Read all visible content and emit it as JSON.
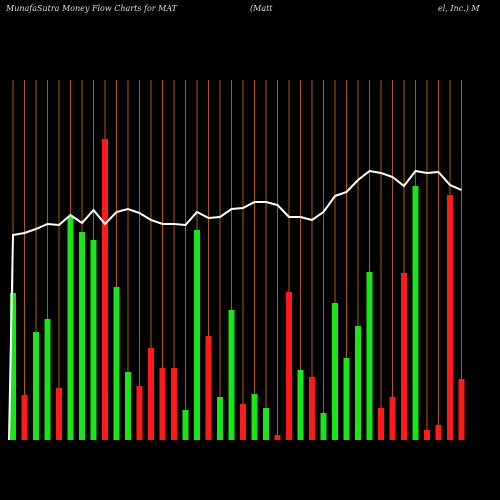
{
  "chart_data": {
    "type": "bar",
    "title": "MunafaSutra  Money Flow  Charts for MAT",
    "subtitle_left": "(Matt",
    "subtitle_right": "el, Inc.) M",
    "values": [
      147,
      45,
      108,
      121,
      52,
      224,
      208,
      200,
      301,
      153,
      68,
      54,
      92,
      72,
      72,
      30,
      210,
      104,
      43,
      130,
      36,
      46,
      32,
      5,
      148,
      70,
      63,
      27,
      137,
      82,
      114,
      168,
      32,
      43,
      167,
      254,
      10,
      15,
      245,
      61
    ],
    "colors": [
      "#19e619",
      "#ff1a1a",
      "#19e619",
      "#19e619",
      "#ff1a1a",
      "#19e619",
      "#19e619",
      "#19e619",
      "#ff1a1a",
      "#19e619",
      "#19e619",
      "#ff1a1a",
      "#ff1a1a",
      "#ff1a1a",
      "#ff1a1a",
      "#19e619",
      "#19e619",
      "#ff1a1a",
      "#19e619",
      "#19e619",
      "#ff1a1a",
      "#19e619",
      "#19e619",
      "#ff1a1a",
      "#ff1a1a",
      "#19e619",
      "#ff1a1a",
      "#19e619",
      "#19e619",
      "#19e619",
      "#19e619",
      "#19e619",
      "#ff1a1a",
      "#ff1a1a",
      "#ff1a1a",
      "#19e619",
      "#ff1a1a",
      "#ff1a1a",
      "#ff1a1a",
      "#ff1a1a"
    ],
    "line": {
      "color": "#ffffff",
      "values": [
        205,
        207,
        211,
        216,
        215,
        225,
        217,
        230,
        216,
        228,
        231,
        227,
        220,
        216,
        216,
        215,
        228,
        222,
        223,
        231,
        232,
        238,
        238,
        235,
        223,
        223,
        220,
        228,
        244,
        248,
        260,
        269,
        267,
        263,
        254,
        269,
        267,
        268,
        255,
        250
      ]
    },
    "ylim": [
      0,
      360
    ],
    "grid_color": "#b35900"
  }
}
